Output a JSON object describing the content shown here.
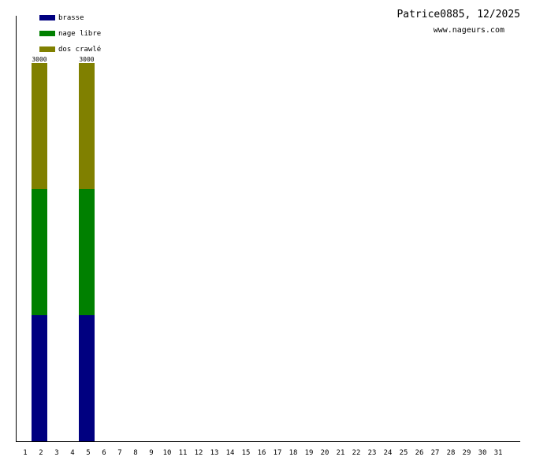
{
  "chart_data": {
    "type": "stacked_bar",
    "title": "Patrice0885, 12/2025",
    "subtitle": "www.nageurs.com",
    "categories": [
      "1",
      "2",
      "3",
      "4",
      "5",
      "6",
      "7",
      "8",
      "9",
      "10",
      "11",
      "12",
      "13",
      "14",
      "15",
      "16",
      "17",
      "18",
      "19",
      "20",
      "21",
      "22",
      "23",
      "24",
      "25",
      "26",
      "27",
      "28",
      "29",
      "30",
      "31"
    ],
    "series": [
      {
        "name": "brasse",
        "color": "#000080",
        "values": [
          null,
          1000,
          null,
          null,
          1000,
          null,
          null,
          null,
          null,
          null,
          null,
          null,
          null,
          null,
          null,
          null,
          null,
          null,
          null,
          null,
          null,
          null,
          null,
          null,
          null,
          null,
          null,
          null,
          null,
          null,
          null
        ]
      },
      {
        "name": "nage libre",
        "color": "#008000",
        "values": [
          null,
          1000,
          null,
          null,
          1000,
          null,
          null,
          null,
          null,
          null,
          null,
          null,
          null,
          null,
          null,
          null,
          null,
          null,
          null,
          null,
          null,
          null,
          null,
          null,
          null,
          null,
          null,
          null,
          null,
          null,
          null
        ]
      },
      {
        "name": "dos crawlé",
        "color": "#808000",
        "values": [
          null,
          1000,
          null,
          null,
          1000,
          null,
          null,
          null,
          null,
          null,
          null,
          null,
          null,
          null,
          null,
          null,
          null,
          null,
          null,
          null,
          null,
          null,
          null,
          null,
          null,
          null,
          null,
          null,
          null,
          null,
          null
        ]
      }
    ],
    "totals": [
      null,
      3000,
      null,
      null,
      3000,
      null,
      null,
      null,
      null,
      null,
      null,
      null,
      null,
      null,
      null,
      null,
      null,
      null,
      null,
      null,
      null,
      null,
      null,
      null,
      null,
      null,
      null,
      null,
      null,
      null,
      null
    ],
    "ylim": [
      0,
      3375
    ],
    "legend": "top-left"
  }
}
